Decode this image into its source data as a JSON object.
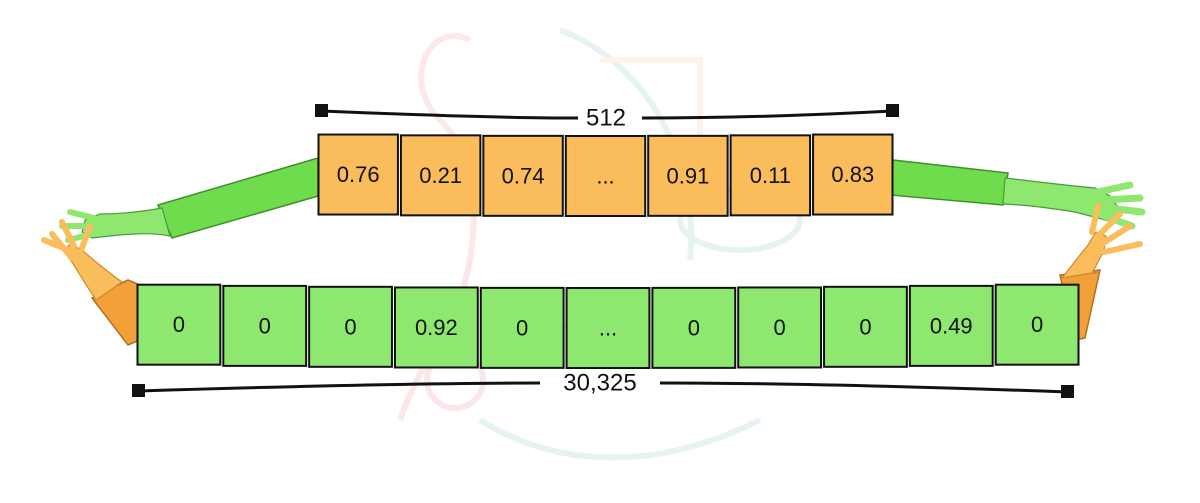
{
  "dense_vector": {
    "length_label": "512",
    "values": [
      "0.76",
      "0.21",
      "0.74",
      "...",
      "0.91",
      "0.11",
      "0.83"
    ],
    "fill_color": "#fbbd5c"
  },
  "sparse_vector": {
    "length_label": "30,325",
    "values": [
      "0",
      "0",
      "0",
      "0.92",
      "0",
      "...",
      "0",
      "0",
      "0",
      "0.49",
      "0"
    ],
    "fill_color": "#8ee870"
  },
  "colors": {
    "orange": "#fbbd5c",
    "orange_dark": "#f2a13a",
    "green": "#8ee870",
    "green_dark": "#6fdc4d",
    "border": "#111111"
  }
}
